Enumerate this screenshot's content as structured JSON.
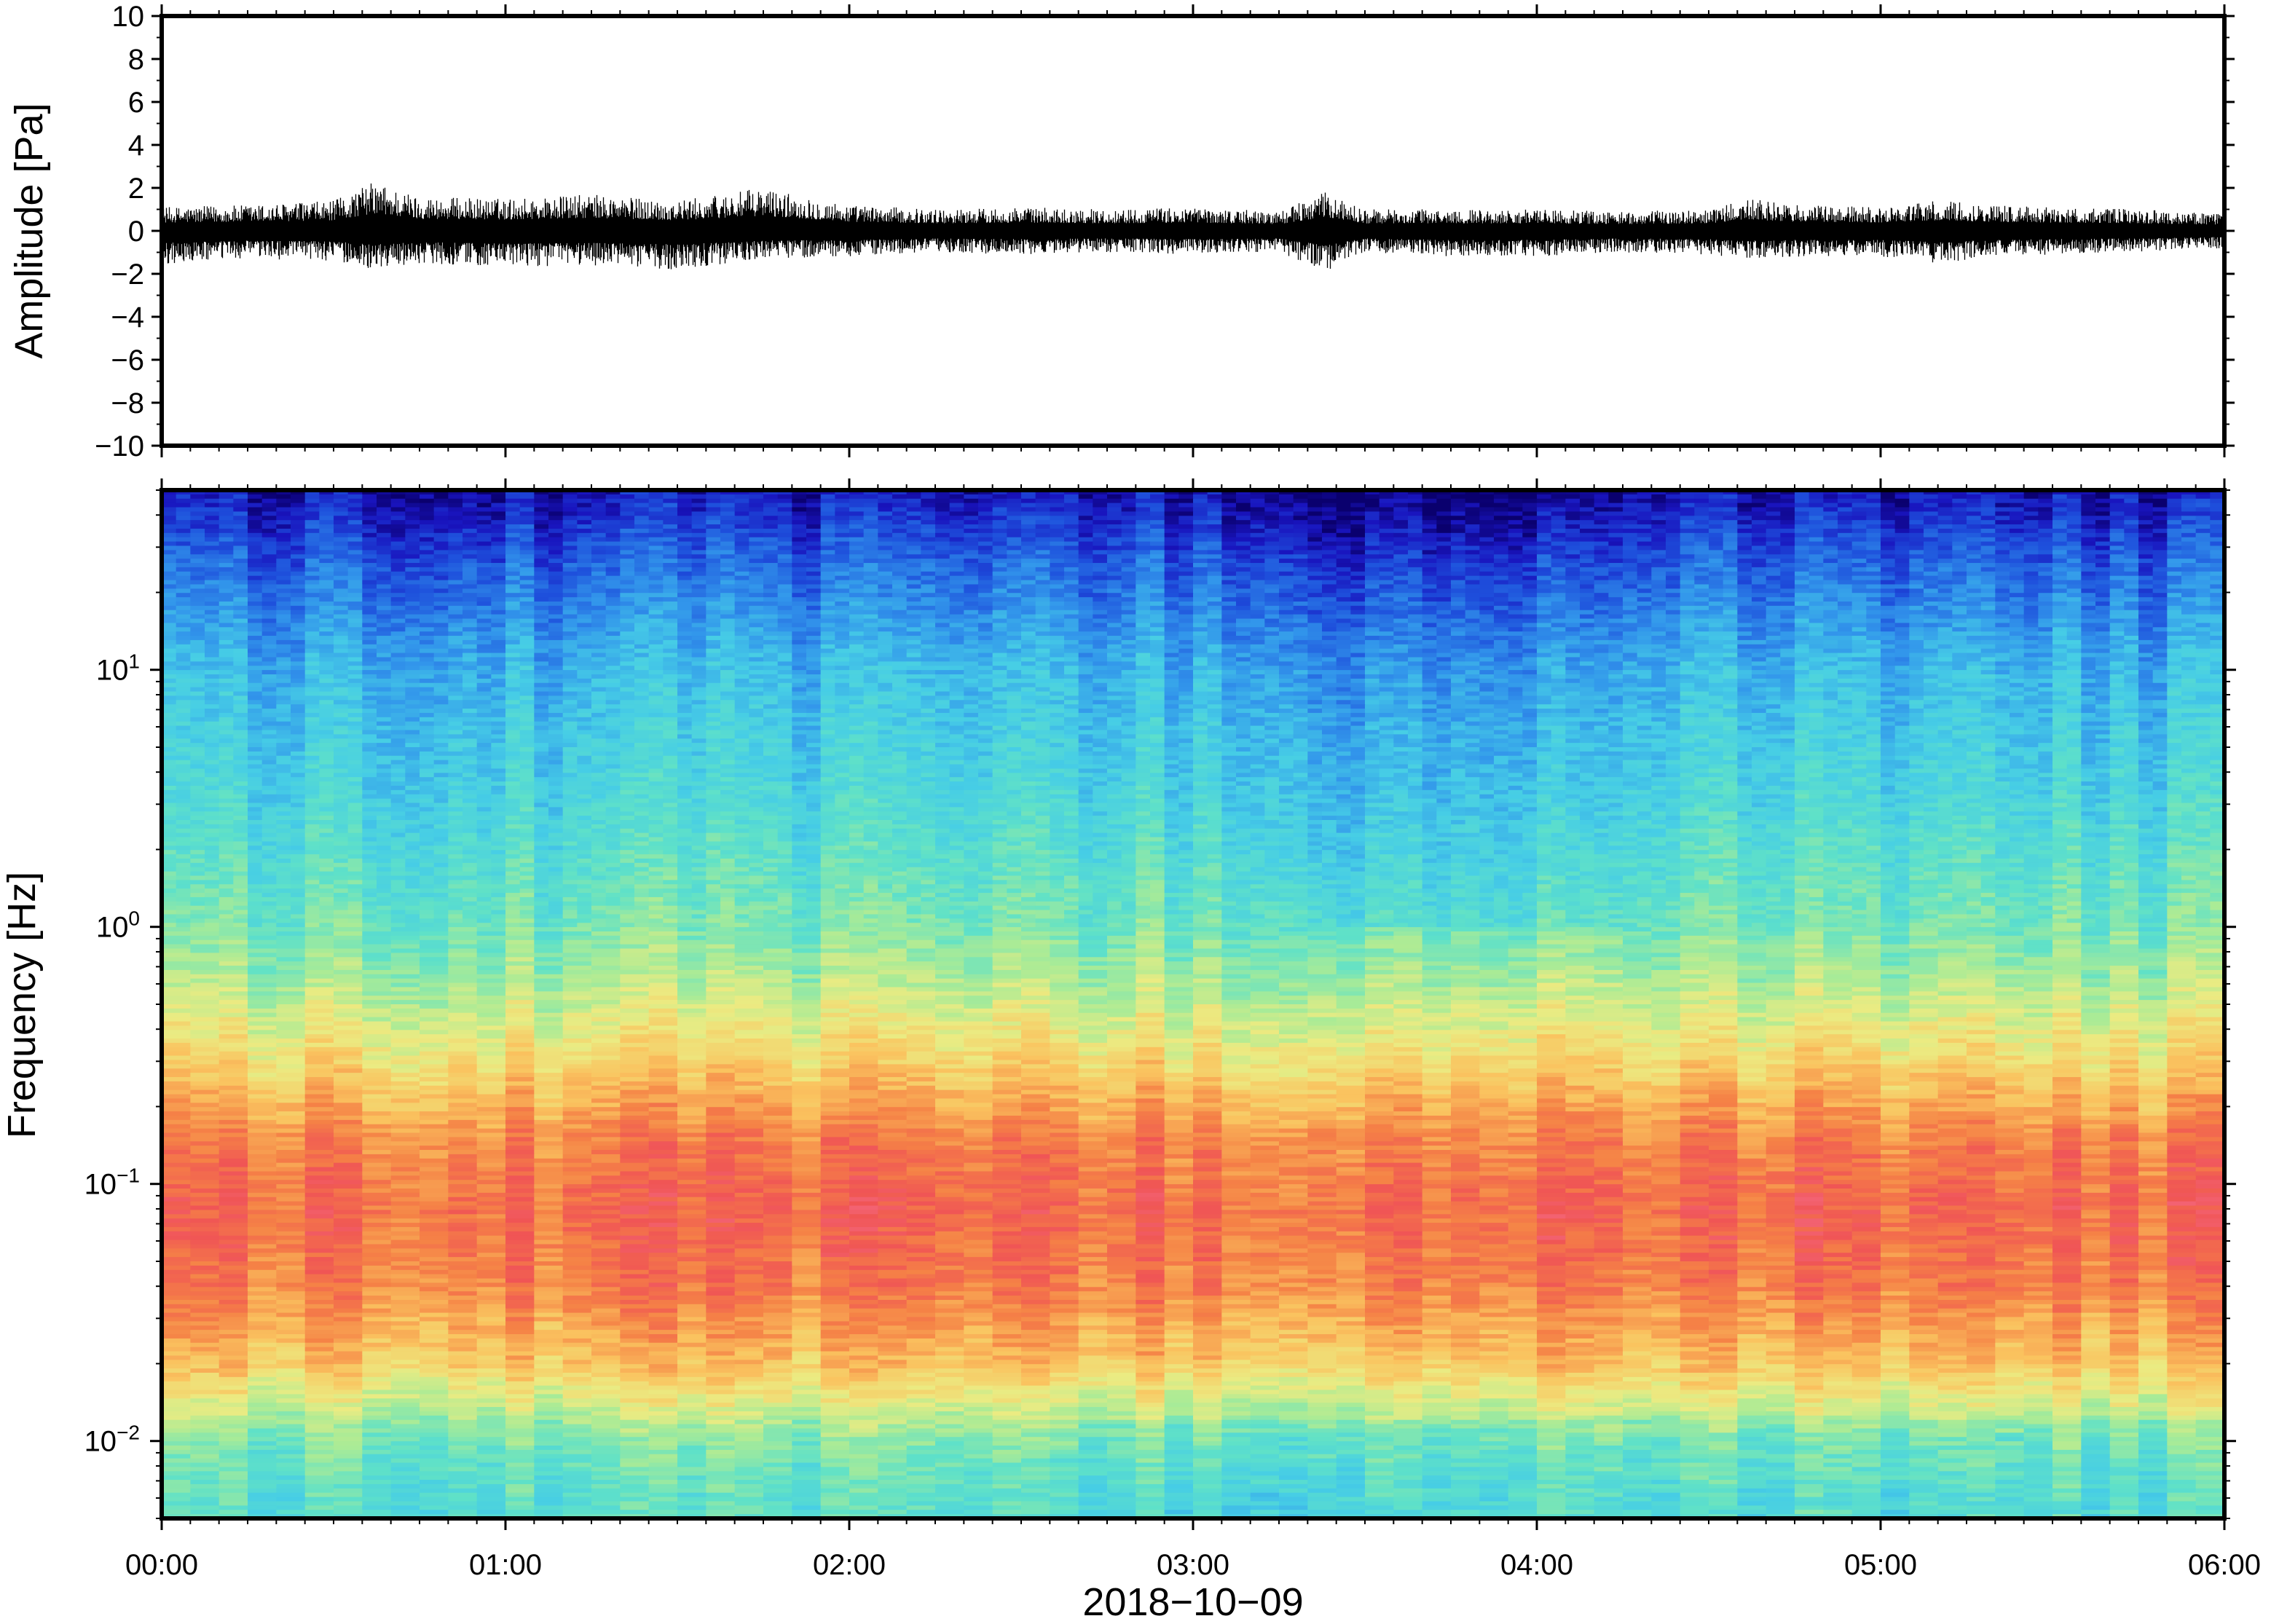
{
  "chart_data": [
    {
      "type": "line",
      "panel": "waveform",
      "ylabel": "Amplitude [Pa]",
      "ylim": [
        -10,
        10
      ],
      "yticks": [
        {
          "value": 10,
          "label": "10"
        },
        {
          "value": 8,
          "label": "8"
        },
        {
          "value": 6,
          "label": "6"
        },
        {
          "value": 4,
          "label": "4"
        },
        {
          "value": 2,
          "label": "2"
        },
        {
          "value": 0,
          "label": "0"
        },
        {
          "value": -2,
          "label": "−2"
        },
        {
          "value": -4,
          "label": "−4"
        },
        {
          "value": -6,
          "label": "−6"
        },
        {
          "value": -8,
          "label": "−8"
        },
        {
          "value": -10,
          "label": "−10"
        }
      ],
      "xlim": [
        "00:00",
        "06:00"
      ],
      "series": [
        {
          "x": [
            "00:00",
            "00:15",
            "00:30",
            "00:37",
            "00:45",
            "01:00",
            "01:15",
            "01:30",
            "01:45",
            "02:00",
            "02:15",
            "02:30",
            "02:45",
            "03:00",
            "03:15",
            "03:23",
            "03:30",
            "03:45",
            "04:00",
            "04:15",
            "04:30",
            "04:37",
            "04:45",
            "05:00",
            "05:10",
            "05:20",
            "05:30",
            "05:45",
            "06:00"
          ],
          "y_max": [
            1.1,
            1.2,
            1.4,
            2.3,
            1.6,
            1.5,
            1.7,
            1.4,
            2.0,
            1.2,
            1.0,
            1.1,
            1.0,
            1.1,
            0.9,
            1.8,
            1.0,
            1.0,
            1.0,
            0.9,
            1.0,
            1.5,
            1.2,
            1.1,
            1.4,
            1.2,
            1.1,
            1.0,
            0.8
          ],
          "y_min": [
            -1.6,
            -1.3,
            -1.4,
            -1.8,
            -1.5,
            -1.7,
            -1.6,
            -1.8,
            -1.3,
            -1.2,
            -1.0,
            -1.1,
            -1.0,
            -1.1,
            -1.0,
            -1.9,
            -1.0,
            -1.2,
            -1.2,
            -1.0,
            -1.1,
            -1.3,
            -1.2,
            -1.2,
            -1.5,
            -1.2,
            -1.1,
            -1.0,
            -0.8
          ]
        }
      ]
    },
    {
      "type": "heatmap",
      "panel": "spectrogram",
      "ylabel": "Frequency [Hz]",
      "xlabel": "2018−10−09",
      "yscale": "log",
      "ylim": [
        0.005,
        50
      ],
      "yticks": [
        {
          "value": 0.01,
          "base": "10",
          "exp": "−2"
        },
        {
          "value": 0.1,
          "base": "10",
          "exp": "−1"
        },
        {
          "value": 1,
          "base": "10",
          "exp": "0"
        },
        {
          "value": 10,
          "base": "10",
          "exp": "1"
        }
      ],
      "xticks": [
        "00:00",
        "01:00",
        "02:00",
        "03:00",
        "04:00",
        "05:00",
        "06:00"
      ],
      "xlim": [
        "00:00",
        "06:00"
      ],
      "colormap": "spectral (blue = low power, red = high power)",
      "power_profile_by_frequency": [
        {
          "freq": 0.006,
          "level": 0.42
        },
        {
          "freq": 0.01,
          "level": 0.48
        },
        {
          "freq": 0.02,
          "level": 0.72
        },
        {
          "freq": 0.04,
          "level": 0.84
        },
        {
          "freq": 0.08,
          "level": 0.88
        },
        {
          "freq": 0.15,
          "level": 0.83
        },
        {
          "freq": 0.3,
          "level": 0.68
        },
        {
          "freq": 0.6,
          "level": 0.55
        },
        {
          "freq": 1,
          "level": 0.47
        },
        {
          "freq": 3,
          "level": 0.38
        },
        {
          "freq": 10,
          "level": 0.3
        },
        {
          "freq": 25,
          "level": 0.17
        },
        {
          "freq": 50,
          "level": 0.05
        }
      ]
    }
  ],
  "colors": {
    "frame": "#000000",
    "trace": "#000000",
    "background": "#ffffff"
  }
}
